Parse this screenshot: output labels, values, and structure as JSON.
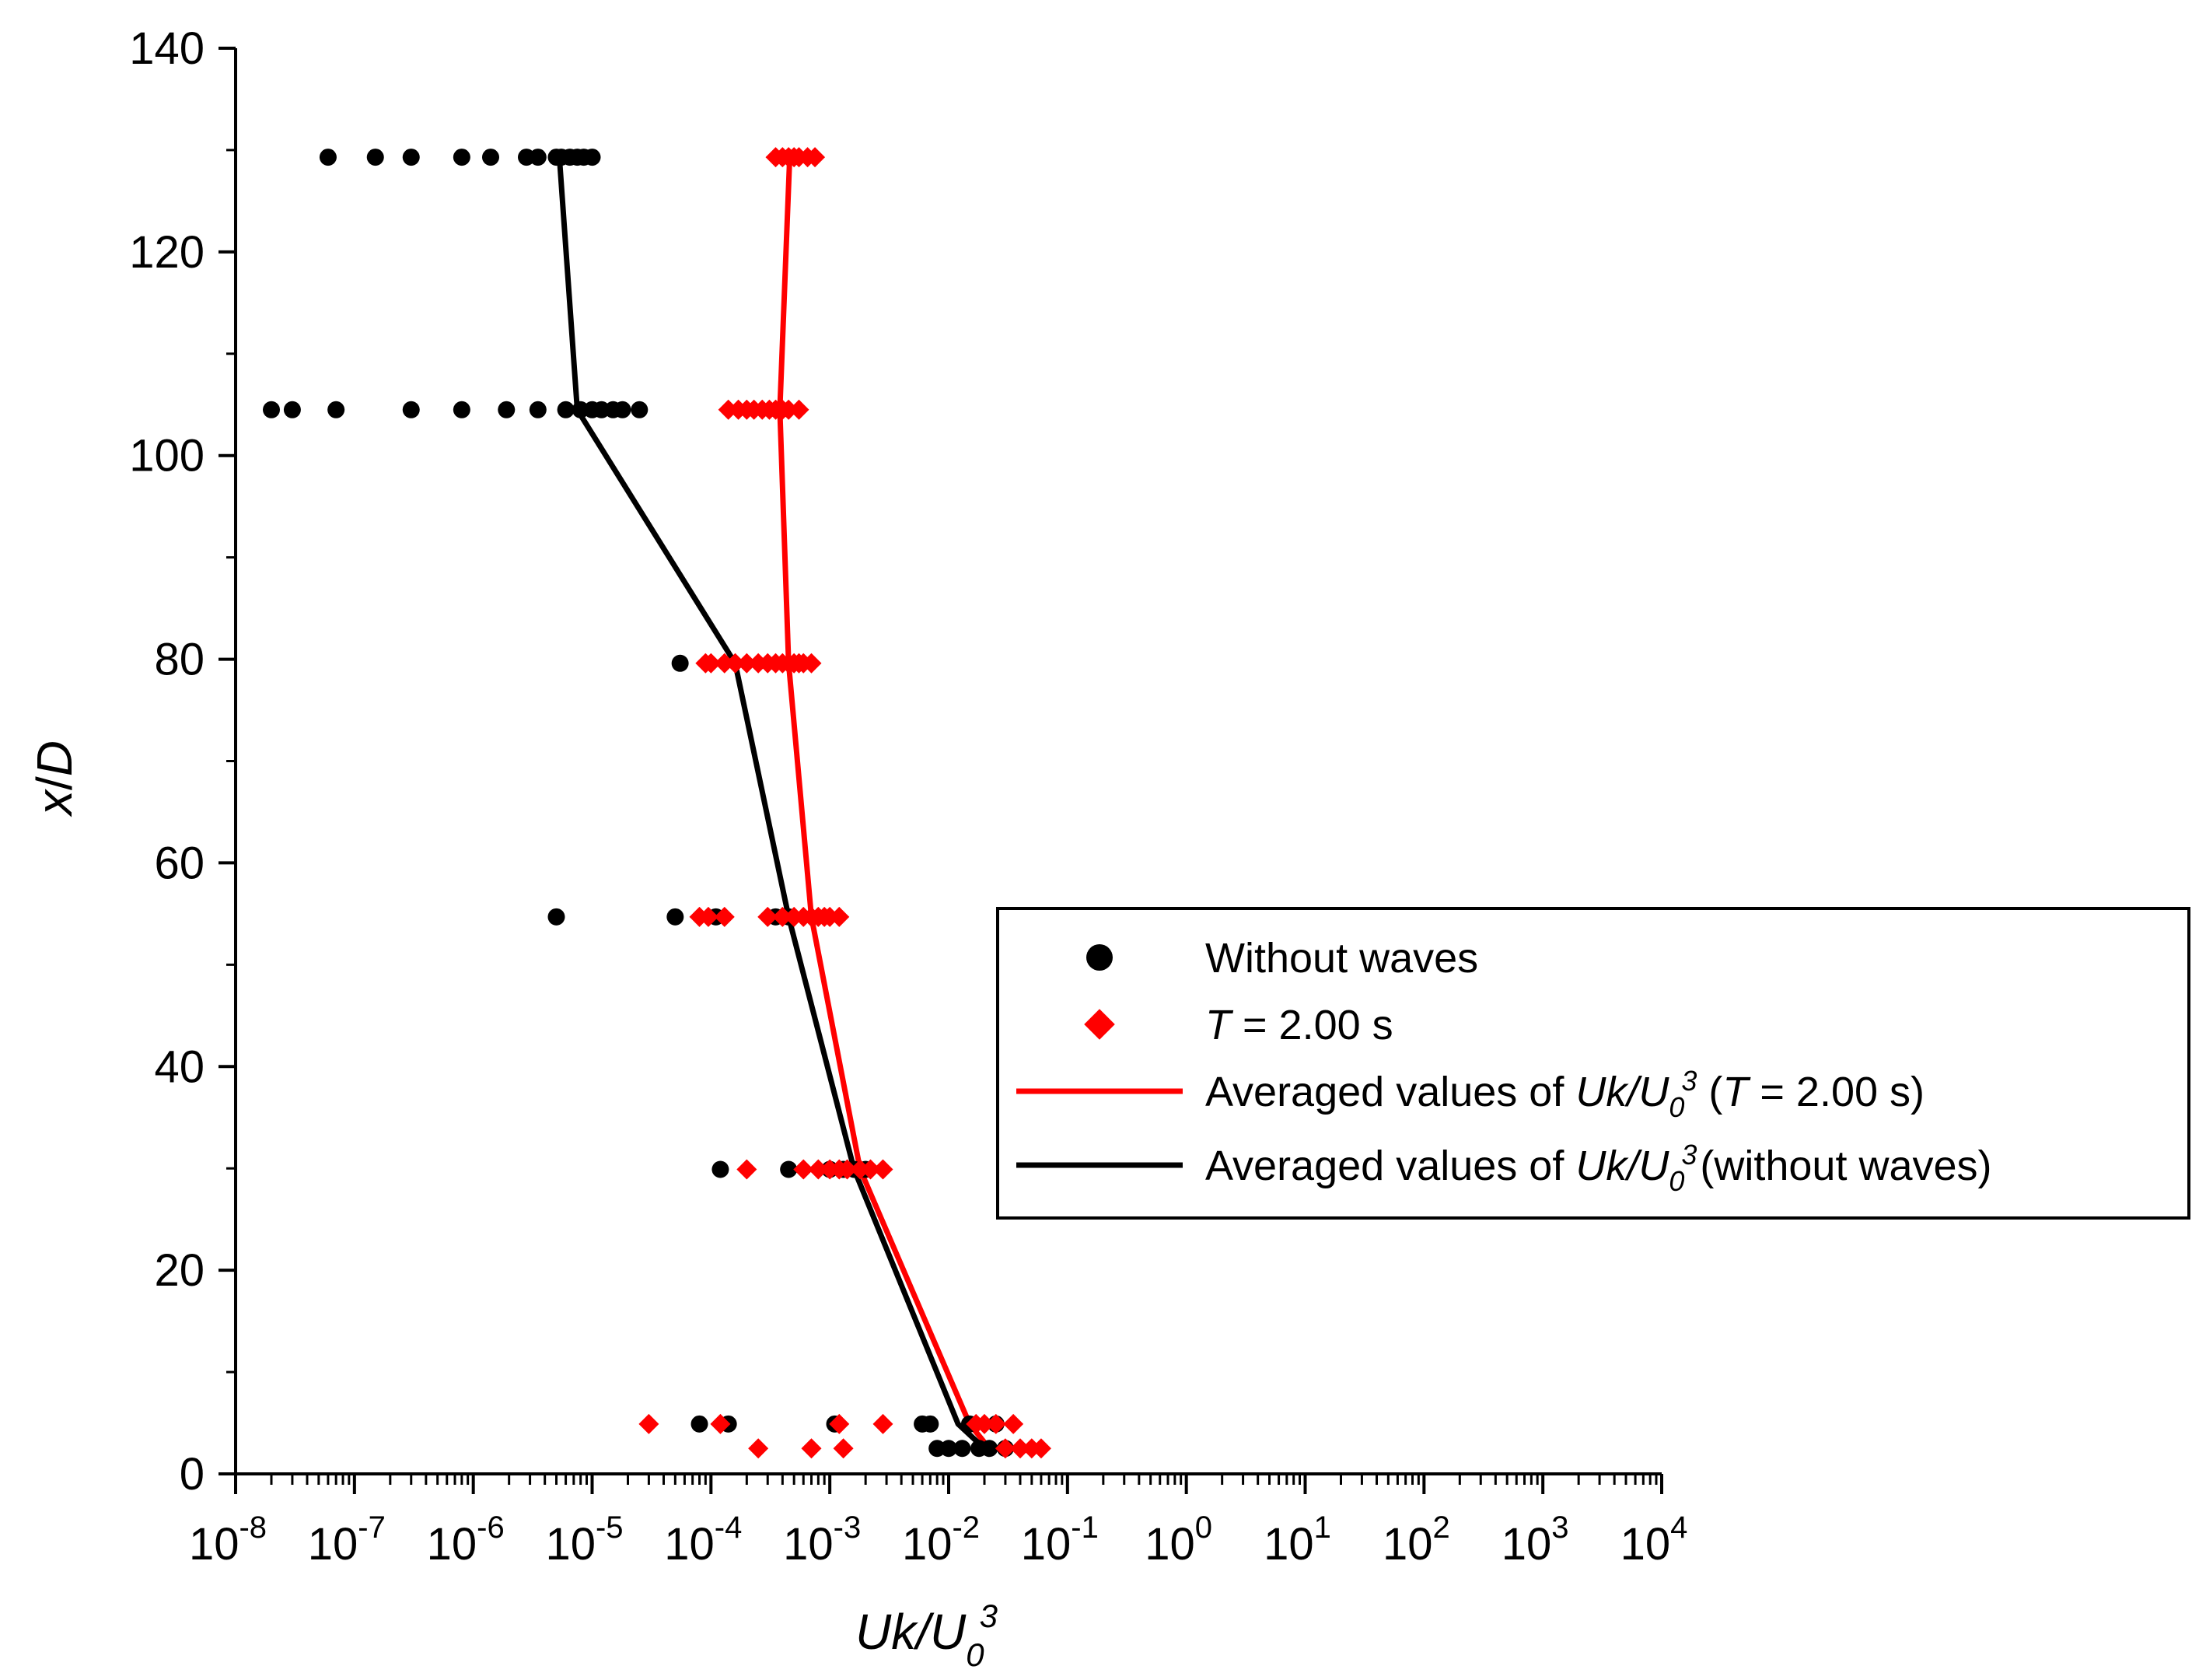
{
  "chart_data": {
    "type": "scatter",
    "xscale": "log",
    "xlabel": "Uk/U0^3",
    "ylabel": "x/D",
    "xlim": [
      1e-08,
      10000
    ],
    "ylim": [
      0,
      140
    ],
    "x_ticks": [
      -8,
      -7,
      -6,
      -5,
      -4,
      -3,
      -2,
      -1,
      0,
      1,
      2,
      3,
      4
    ],
    "y_ticks": [
      0,
      20,
      40,
      60,
      80,
      100,
      120,
      140
    ],
    "grid": false,
    "legend_position": "center-right",
    "series": [
      {
        "name": "Without waves",
        "kind": "scatter",
        "marker": "circle",
        "color": "#000000",
        "points": [
          [
            6e-08,
            129.3
          ],
          [
            1.5e-07,
            129.3
          ],
          [
            3e-07,
            129.3
          ],
          [
            8e-07,
            129.3
          ],
          [
            1.4e-06,
            129.3
          ],
          [
            2.8e-06,
            129.3
          ],
          [
            3.5e-06,
            129.3
          ],
          [
            5e-06,
            129.3
          ],
          [
            5.5e-06,
            129.3
          ],
          [
            6.5e-06,
            129.3
          ],
          [
            7.5e-06,
            129.3
          ],
          [
            8.5e-06,
            129.3
          ],
          [
            1e-05,
            129.3
          ],
          [
            2e-08,
            104.5
          ],
          [
            3e-08,
            104.5
          ],
          [
            7e-08,
            104.5
          ],
          [
            3e-07,
            104.5
          ],
          [
            8e-07,
            104.5
          ],
          [
            1.9e-06,
            104.5
          ],
          [
            3.5e-06,
            104.5
          ],
          [
            6e-06,
            104.5
          ],
          [
            8e-06,
            104.5
          ],
          [
            1e-05,
            104.5
          ],
          [
            1.2e-05,
            104.5
          ],
          [
            1.5e-05,
            104.5
          ],
          [
            1.8e-05,
            104.5
          ],
          [
            2.5e-05,
            104.5
          ],
          [
            5.5e-05,
            79.6
          ],
          [
            5e-06,
            54.7
          ],
          [
            5e-05,
            54.7
          ],
          [
            0.00011,
            54.7
          ],
          [
            0.00035,
            54.7
          ],
          [
            0.00045,
            54.7
          ],
          [
            0.00012,
            29.9
          ],
          [
            0.00045,
            29.9
          ],
          [
            0.001,
            29.9
          ],
          [
            0.0013,
            29.9
          ],
          [
            0.0016,
            29.9
          ],
          [
            0.002,
            29.9
          ],
          [
            8e-05,
            4.9
          ],
          [
            0.00014,
            4.9
          ],
          [
            0.0011,
            4.9
          ],
          [
            0.006,
            4.9
          ],
          [
            0.007,
            4.9
          ],
          [
            0.015,
            4.9
          ],
          [
            0.025,
            4.9
          ],
          [
            0.008,
            2.5
          ],
          [
            0.01,
            2.5
          ],
          [
            0.013,
            2.5
          ],
          [
            0.018,
            2.5
          ],
          [
            0.022,
            2.5
          ],
          [
            0.03,
            2.5
          ]
        ]
      },
      {
        "name": "T = 2.00 s",
        "kind": "scatter",
        "marker": "diamond",
        "color": "#ff0000",
        "points": [
          [
            0.00035,
            129.3
          ],
          [
            0.0004,
            129.3
          ],
          [
            0.00045,
            129.3
          ],
          [
            0.0005,
            129.3
          ],
          [
            0.00055,
            129.3
          ],
          [
            0.00065,
            129.3
          ],
          [
            0.00075,
            129.3
          ],
          [
            0.00014,
            104.5
          ],
          [
            0.00017,
            104.5
          ],
          [
            0.0002,
            104.5
          ],
          [
            0.00023,
            104.5
          ],
          [
            0.00027,
            104.5
          ],
          [
            0.00031,
            104.5
          ],
          [
            0.00035,
            104.5
          ],
          [
            0.0004,
            104.5
          ],
          [
            0.00045,
            104.5
          ],
          [
            0.00055,
            104.5
          ],
          [
            9e-05,
            79.6
          ],
          [
            0.0001,
            79.6
          ],
          [
            0.00013,
            79.6
          ],
          [
            0.00016,
            79.6
          ],
          [
            0.0002,
            79.6
          ],
          [
            0.00025,
            79.6
          ],
          [
            0.0003,
            79.6
          ],
          [
            0.00035,
            79.6
          ],
          [
            0.0004,
            79.6
          ],
          [
            0.00045,
            79.6
          ],
          [
            0.0005,
            79.6
          ],
          [
            0.00055,
            79.6
          ],
          [
            0.0006,
            79.6
          ],
          [
            0.0007,
            79.6
          ],
          [
            8e-05,
            54.7
          ],
          [
            9.5e-05,
            54.7
          ],
          [
            0.00013,
            54.7
          ],
          [
            0.0003,
            54.7
          ],
          [
            0.0004,
            54.7
          ],
          [
            0.0005,
            54.7
          ],
          [
            0.0006,
            54.7
          ],
          [
            0.0007,
            54.7
          ],
          [
            0.0008,
            54.7
          ],
          [
            0.0009,
            54.7
          ],
          [
            0.001,
            54.7
          ],
          [
            0.0012,
            54.7
          ],
          [
            0.0002,
            29.9
          ],
          [
            0.0006,
            29.9
          ],
          [
            0.0008,
            29.9
          ],
          [
            0.001,
            29.9
          ],
          [
            0.0012,
            29.9
          ],
          [
            0.0014,
            29.9
          ],
          [
            0.0018,
            29.9
          ],
          [
            0.0022,
            29.9
          ],
          [
            0.0028,
            29.9
          ],
          [
            3e-05,
            4.9
          ],
          [
            0.00012,
            4.9
          ],
          [
            0.0012,
            4.9
          ],
          [
            0.0028,
            4.9
          ],
          [
            0.017,
            4.9
          ],
          [
            0.02,
            4.9
          ],
          [
            0.025,
            4.9
          ],
          [
            0.035,
            4.9
          ],
          [
            0.00025,
            2.5
          ],
          [
            0.0007,
            2.5
          ],
          [
            0.0013,
            2.5
          ],
          [
            0.03,
            2.5
          ],
          [
            0.04,
            2.5
          ],
          [
            0.05,
            2.5
          ],
          [
            0.06,
            2.5
          ]
        ]
      },
      {
        "name": "Averaged values of Uk/U0^3 (T = 2.00 s)",
        "kind": "line",
        "color": "#ff0000",
        "points": [
          [
            0.022,
            2.5
          ],
          [
            0.015,
            4.9
          ],
          [
            0.0018,
            29.9
          ],
          [
            0.0007,
            54.7
          ],
          [
            0.00045,
            79.6
          ],
          [
            0.00038,
            104.5
          ],
          [
            0.00046,
            129.3
          ]
        ]
      },
      {
        "name": "Averaged values of Uk/U0^3 (without waves)",
        "kind": "line",
        "color": "#000000",
        "points": [
          [
            0.02,
            2.5
          ],
          [
            0.012,
            4.9
          ],
          [
            0.0016,
            29.9
          ],
          [
            0.00045,
            54.7
          ],
          [
            0.00016,
            79.6
          ],
          [
            7.5e-06,
            104.5
          ],
          [
            5.3e-06,
            129.3
          ]
        ]
      }
    ]
  },
  "legend": {
    "item1": "Without waves",
    "item2_italic": "T",
    "item2_rest": " = 2.00 s",
    "item3_prefix": "Averaged values of ",
    "item3_italic": "Uk/U",
    "item3_sub": "0",
    "item3_sup": "3",
    "item3_mid": " (",
    "item3_italic2": "T",
    "item3_suffix": " = 2.00 s)",
    "item4_prefix": "Averaged values of ",
    "item4_italic": "Uk/U",
    "item4_sub": "0",
    "item4_sup": "3",
    "item4_suffix": "(without waves)"
  },
  "axis_titles": {
    "x_main": "Uk/U",
    "x_sub": "0",
    "x_sup": "3",
    "y_x": "x",
    "y_slash": "/",
    "y_D": "D"
  },
  "tick_base": "10"
}
